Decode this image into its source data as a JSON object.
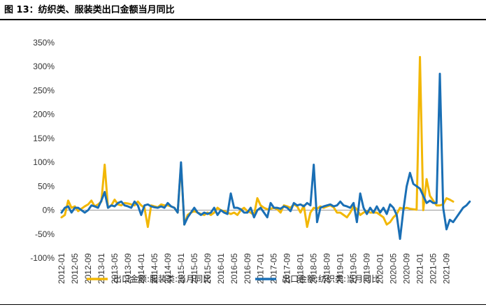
{
  "figure_title": "图 13：纺织类、服装类出口金额当月同比",
  "chart_data": {
    "type": "line",
    "title": "",
    "xlabel": "",
    "ylabel": "",
    "ylim": [
      -100,
      350
    ],
    "yticks": [
      -100,
      -50,
      0,
      50,
      100,
      150,
      200,
      250,
      300,
      350
    ],
    "ytick_labels": [
      "-100%",
      "-50%",
      "0%",
      "50%",
      "100%",
      "150%",
      "200%",
      "250%",
      "300%",
      "350%"
    ],
    "x_start": "2012-01",
    "x_end": "2021-12",
    "x_tick_labels": [
      "2012-01",
      "2012-05",
      "2012-09",
      "2013-01",
      "2013-05",
      "2013-09",
      "2014-01",
      "2014-05",
      "2014-09",
      "2015-01",
      "2015-05",
      "2015-09",
      "2016-01",
      "2016-05",
      "2016-09",
      "2017-01",
      "2017-05",
      "2017-09",
      "2018-01",
      "2018-05",
      "2018-09",
      "2019-01",
      "2019-05",
      "2019-09",
      "2020-01",
      "2020-05",
      "2020-09",
      "2021-01",
      "2021-05",
      "2021-09"
    ],
    "legend_position": "bottom",
    "series": [
      {
        "name": "出口金额:服装类:当月同比",
        "color": "#F2B705",
        "values": [
          -15,
          -10,
          20,
          5,
          8,
          -2,
          3,
          8,
          12,
          20,
          8,
          12,
          18,
          95,
          5,
          10,
          22,
          12,
          10,
          15,
          14,
          12,
          10,
          18,
          10,
          5,
          -35,
          10,
          8,
          6,
          12,
          10,
          10,
          8,
          5,
          -5,
          95,
          -30,
          -10,
          -5,
          -2,
          -5,
          -8,
          -10,
          -5,
          -10,
          -5,
          5,
          0,
          -2,
          -5,
          -8,
          -5,
          -10,
          0,
          5,
          -2,
          -5,
          -10,
          25,
          10,
          5,
          2,
          3,
          5,
          2,
          -5,
          10,
          8,
          5,
          12,
          8,
          -5,
          10,
          -35,
          -5,
          5,
          3,
          8,
          5,
          8,
          10,
          6,
          -5,
          -5,
          -10,
          -15,
          -5,
          8,
          2,
          -10,
          -5,
          -2,
          -5,
          -5,
          -5,
          -10,
          -15,
          -30,
          -25,
          -15,
          -8,
          5,
          3,
          5,
          3,
          2,
          1,
          320,
          0,
          65,
          30,
          20,
          10,
          10,
          12,
          25,
          22,
          18
        ]
      },
      {
        "name": "出口金额:纺织类:当月同比",
        "color": "#1A6FB5",
        "values": [
          -5,
          5,
          8,
          -5,
          5,
          5,
          0,
          -5,
          0,
          10,
          8,
          5,
          20,
          38,
          5,
          10,
          8,
          15,
          18,
          10,
          8,
          5,
          18,
          10,
          -10,
          10,
          12,
          8,
          6,
          5,
          8,
          5,
          15,
          8,
          5,
          -5,
          100,
          -30,
          -15,
          -5,
          5,
          -5,
          -10,
          -5,
          -8,
          -5,
          5,
          -10,
          0,
          -5,
          -8,
          35,
          5,
          5,
          2,
          -5,
          -5,
          5,
          -15,
          0,
          5,
          -5,
          -15,
          15,
          5,
          5,
          3,
          8,
          5,
          -2,
          15,
          10,
          12,
          8,
          15,
          10,
          95,
          -25,
          5,
          8,
          10,
          12,
          8,
          10,
          18,
          10,
          8,
          5,
          15,
          -25,
          35,
          5,
          -8,
          5,
          -5,
          8,
          -5,
          5,
          -8,
          12,
          5,
          -10,
          -60,
          0,
          50,
          78,
          55,
          50,
          45,
          30,
          15,
          20,
          15,
          15,
          285,
          5,
          -40,
          -20,
          -25,
          -15,
          -5,
          5,
          10,
          18
        ]
      }
    ]
  }
}
